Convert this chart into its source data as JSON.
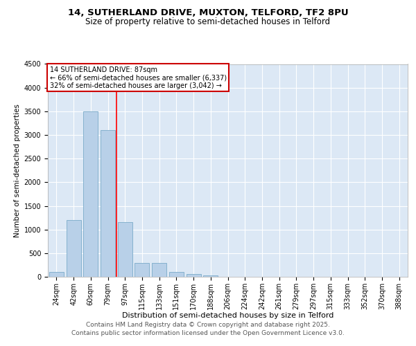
{
  "title1": "14, SUTHERLAND DRIVE, MUXTON, TELFORD, TF2 8PU",
  "title2": "Size of property relative to semi-detached houses in Telford",
  "xlabel": "Distribution of semi-detached houses by size in Telford",
  "ylabel": "Number of semi-detached properties",
  "categories": [
    "24sqm",
    "42sqm",
    "60sqm",
    "79sqm",
    "97sqm",
    "115sqm",
    "133sqm",
    "151sqm",
    "170sqm",
    "188sqm",
    "206sqm",
    "224sqm",
    "242sqm",
    "261sqm",
    "279sqm",
    "297sqm",
    "315sqm",
    "333sqm",
    "352sqm",
    "370sqm",
    "388sqm"
  ],
  "values": [
    100,
    1200,
    3500,
    3100,
    1150,
    300,
    290,
    100,
    60,
    30,
    5,
    2,
    1,
    1,
    0,
    0,
    0,
    0,
    0,
    0,
    0
  ],
  "bar_color": "#b8d0e8",
  "bar_edge_color": "#7aaac8",
  "red_line_index": 3.5,
  "annotation_text": "14 SUTHERLAND DRIVE: 87sqm\n← 66% of semi-detached houses are smaller (6,337)\n32% of semi-detached houses are larger (3,042) →",
  "annotation_box_color": "#ffffff",
  "annotation_box_edge_color": "#cc0000",
  "footer1": "Contains HM Land Registry data © Crown copyright and database right 2025.",
  "footer2": "Contains public sector information licensed under the Open Government Licence v3.0.",
  "ylim": [
    0,
    4500
  ],
  "yticks": [
    0,
    500,
    1000,
    1500,
    2000,
    2500,
    3000,
    3500,
    4000,
    4500
  ],
  "bg_color": "#dce8f5",
  "fig_bg_color": "#ffffff",
  "title1_fontsize": 9.5,
  "title2_fontsize": 8.5,
  "xlabel_fontsize": 8,
  "ylabel_fontsize": 7.5,
  "tick_fontsize": 7,
  "annotation_fontsize": 7,
  "footer_fontsize": 6.5
}
